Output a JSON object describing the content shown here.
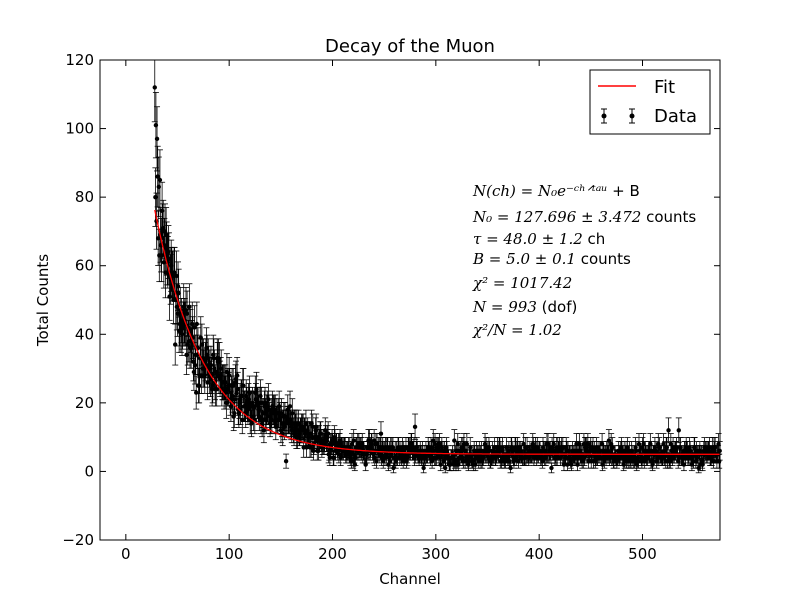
{
  "chart_data": {
    "type": "scatter",
    "title": "Decay of the Muon",
    "xlabel": "Channel",
    "ylabel": "Total Counts",
    "xlim": [
      -25,
      575
    ],
    "ylim": [
      -20,
      120
    ],
    "xticks": [
      0,
      100,
      200,
      300,
      400,
      500
    ],
    "yticks": [
      -20,
      0,
      20,
      40,
      60,
      80,
      100,
      120
    ],
    "xtick_labels": [
      "0",
      "100",
      "200",
      "300",
      "400",
      "500"
    ],
    "ytick_labels": [
      "−20",
      "0",
      "20",
      "40",
      "60",
      "80",
      "100",
      "120"
    ],
    "legend": {
      "placement": "top-right",
      "entries": [
        {
          "label": "Fit",
          "color": "#ff0000",
          "marker": "line"
        },
        {
          "label": "Data",
          "color": "#000000",
          "marker": "errorbar-dot"
        }
      ]
    },
    "fit": {
      "model": "N0*exp(-ch/tau)+B",
      "N0": 127.696,
      "tau": 48.0,
      "B": 5.0,
      "x_start": 28,
      "color": "#ff0000"
    },
    "annotations": [
      {
        "math": "N(ch) = N₀e⁻ᶜʰᐟᵗᵃᵘ",
        "text": " + B"
      },
      {
        "math": "N₀ = 127.696 ± 3.472",
        "text": " counts"
      },
      {
        "math": "τ = 48.0 ± 1.2",
        "text": "  ch"
      },
      {
        "math": "B = 5.0 ± 0.1",
        "text": " counts"
      },
      {
        "math": "χ² = 1017.42",
        "text": ""
      },
      {
        "math": "N = 993",
        "text": " (dof)"
      },
      {
        "math": "χ²/N = 1.02",
        "text": ""
      }
    ],
    "series": [
      {
        "name": "Data",
        "color": "#000000",
        "note": "993 points from channel 28 upward, values ~ fit + noise, sqrt(N) error bars",
        "highlighted_points": [
          {
            "x": 28,
            "y": 112
          },
          {
            "x": 29,
            "y": 101
          },
          {
            "x": 30,
            "y": 97
          },
          {
            "x": 31,
            "y": 86
          },
          {
            "x": 32,
            "y": 83
          },
          {
            "x": 35,
            "y": 76
          },
          {
            "x": 36,
            "y": 71
          },
          {
            "x": 40,
            "y": 62
          },
          {
            "x": 43,
            "y": 58
          },
          {
            "x": 48,
            "y": 37
          },
          {
            "x": 155,
            "y": 3
          },
          {
            "x": 280,
            "y": 13
          },
          {
            "x": 525,
            "y": 12
          },
          {
            "x": 535,
            "y": 12
          }
        ]
      },
      {
        "name": "Fit",
        "color": "#ff0000",
        "type": "line"
      }
    ]
  }
}
